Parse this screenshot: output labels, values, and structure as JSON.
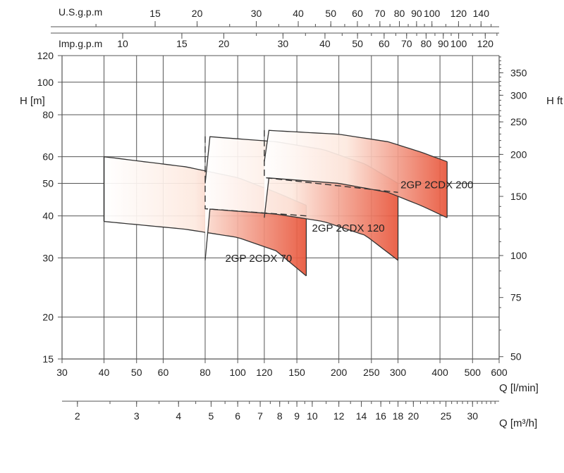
{
  "chart_data": {
    "type": "area",
    "x_scale": "log",
    "y_scale": "log",
    "grid": true,
    "xlabel": "Q [l/min]",
    "xlim": [
      30,
      600
    ],
    "x_ticks": [
      "30",
      "40",
      "50",
      "60",
      "80",
      "100",
      "120",
      "150",
      "200",
      "250",
      "300",
      "400",
      "500",
      "600"
    ],
    "ylabel": "H [m]",
    "ylim": [
      15,
      120
    ],
    "y_ticks": [
      "15",
      "20",
      "30",
      "40",
      "50",
      "60",
      "80",
      "100",
      "120"
    ],
    "ylabel_right": "H ft",
    "y_ticks_right": [
      "50",
      "75",
      "100",
      "150",
      "200",
      "250",
      "300",
      "350"
    ],
    "top_axis_1_label": "U.S.g.p.m",
    "top_axis_1_ticks": [
      "15",
      "20",
      "30",
      "40",
      "50",
      "60",
      "70",
      "80",
      "90",
      "100",
      "120",
      "140"
    ],
    "top_axis_2_label": "Imp.g.p.m",
    "top_axis_2_ticks": [
      "10",
      "15",
      "20",
      "30",
      "40",
      "50",
      "60",
      "70",
      "80",
      "90",
      "100",
      "120"
    ],
    "bottom_axis_2_label": "Q [m³/h]",
    "bottom_axis_2_ticks": [
      "2",
      "3",
      "4",
      "5",
      "6",
      "7",
      "8",
      "9",
      "10",
      "12",
      "14",
      "16",
      "18",
      "20",
      "25",
      "30"
    ],
    "colors": {
      "grid": "#555555",
      "curve": "#333333",
      "fill_light": "#fde9df",
      "fill_dark": "#e8553a"
    },
    "series": [
      {
        "name": "2GP 2CDX 70",
        "q_range": [
          40,
          160
        ],
        "upper": [
          [
            40,
            60
          ],
          [
            70,
            56
          ],
          [
            100,
            52
          ],
          [
            130,
            47
          ],
          [
            160,
            43
          ]
        ],
        "lower": [
          [
            40,
            38.5
          ],
          [
            70,
            36.5
          ],
          [
            100,
            34.5
          ],
          [
            130,
            31.5
          ],
          [
            160,
            26.5
          ]
        ],
        "step": null
      },
      {
        "name": "2GP 2CDX 120",
        "q_range": [
          80,
          300
        ],
        "upper": [
          [
            80,
            69
          ],
          [
            130,
            66.5
          ],
          [
            180,
            63
          ],
          [
            240,
            57
          ],
          [
            300,
            50
          ]
        ],
        "lower": [
          [
            80,
            42
          ],
          [
            130,
            40.5
          ],
          [
            180,
            38.5
          ],
          [
            240,
            35
          ],
          [
            300,
            29.5
          ]
        ],
        "step": {
          "x": 80,
          "y_from": 69,
          "y_to": 42,
          "to_x": 160,
          "to_y": 40
        }
      },
      {
        "name": "2GP 2CDX 200",
        "q_range": [
          120,
          420
        ],
        "upper": [
          [
            120,
            72
          ],
          [
            200,
            70
          ],
          [
            280,
            66.5
          ],
          [
            350,
            62
          ],
          [
            420,
            58
          ]
        ],
        "lower": [
          [
            120,
            52
          ],
          [
            200,
            50
          ],
          [
            280,
            47
          ],
          [
            350,
            43
          ],
          [
            420,
            39.5
          ]
        ],
        "step": {
          "x": 120,
          "y_from": 72,
          "y_to": 52,
          "to_x": 300,
          "to_y": 47
        }
      }
    ]
  }
}
